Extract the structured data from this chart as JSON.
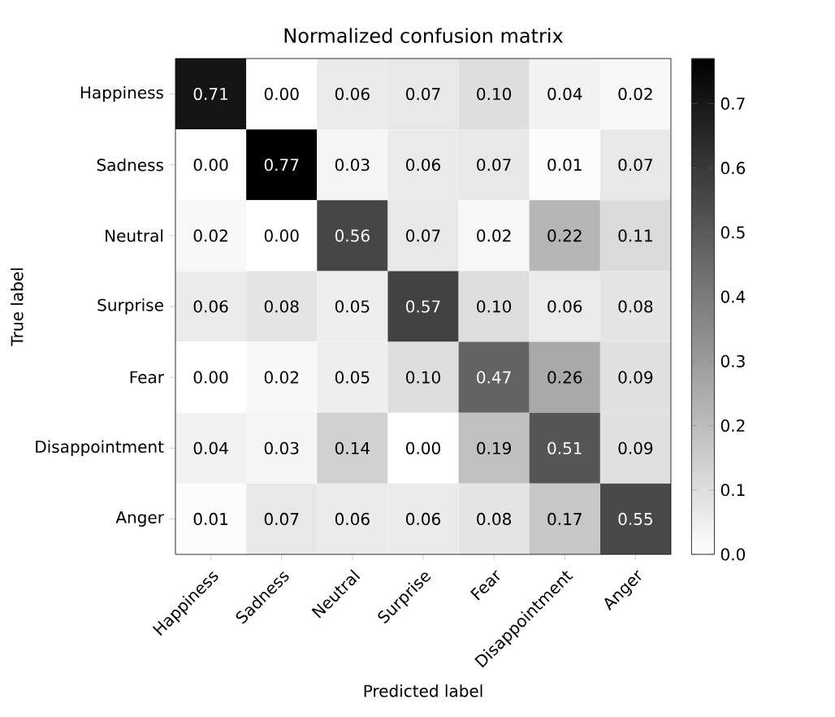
{
  "chart_data": {
    "type": "heatmap",
    "title": "Normalized confusion matrix",
    "xlabel": "Predicted label",
    "ylabel": "True label",
    "categories": [
      "Happiness",
      "Sadness",
      "Neutral",
      "Surprise",
      "Fear",
      "Disappointment",
      "Anger"
    ],
    "y_categories": [
      "Happiness",
      "Sadness",
      "Neutral",
      "Surprise",
      "Fear",
      "Disappointment",
      "Anger"
    ],
    "cells": [
      [
        0.71,
        0.0,
        0.06,
        0.07,
        0.1,
        0.04,
        0.02
      ],
      [
        0.0,
        0.77,
        0.03,
        0.06,
        0.07,
        0.01,
        0.07
      ],
      [
        0.02,
        0.0,
        0.56,
        0.07,
        0.02,
        0.22,
        0.11
      ],
      [
        0.06,
        0.08,
        0.05,
        0.57,
        0.1,
        0.06,
        0.08
      ],
      [
        0.0,
        0.02,
        0.05,
        0.1,
        0.47,
        0.26,
        0.09
      ],
      [
        0.04,
        0.03,
        0.14,
        0.0,
        0.19,
        0.51,
        0.09
      ],
      [
        0.01,
        0.07,
        0.06,
        0.06,
        0.08,
        0.17,
        0.55
      ]
    ],
    "cell_labels": [
      [
        "0.71",
        "0.00",
        "0.06",
        "0.07",
        "0.10",
        "0.04",
        "0.02"
      ],
      [
        "0.00",
        "0.77",
        "0.03",
        "0.06",
        "0.07",
        "0.01",
        "0.07"
      ],
      [
        "0.02",
        "0.00",
        "0.56",
        "0.07",
        "0.02",
        "0.22",
        "0.11"
      ],
      [
        "0.06",
        "0.08",
        "0.05",
        "0.57",
        "0.10",
        "0.06",
        "0.08"
      ],
      [
        "0.00",
        "0.02",
        "0.05",
        "0.10",
        "0.47",
        "0.26",
        "0.09"
      ],
      [
        "0.04",
        "0.03",
        "0.14",
        "0.00",
        "0.19",
        "0.51",
        "0.09"
      ],
      [
        "0.01",
        "0.07",
        "0.06",
        "0.06",
        "0.08",
        "0.17",
        "0.55"
      ]
    ],
    "clim": [
      0,
      0.77
    ],
    "cticks": [
      {
        "value": 0.0,
        "label": "0.0"
      },
      {
        "value": 0.1,
        "label": "0.1"
      },
      {
        "value": 0.2,
        "label": "0.2"
      },
      {
        "value": 0.3,
        "label": "0.3"
      },
      {
        "value": 0.4,
        "label": "0.4"
      },
      {
        "value": 0.5,
        "label": "0.5"
      },
      {
        "value": 0.6,
        "label": "0.6"
      },
      {
        "value": 0.7,
        "label": "0.7"
      }
    ]
  }
}
